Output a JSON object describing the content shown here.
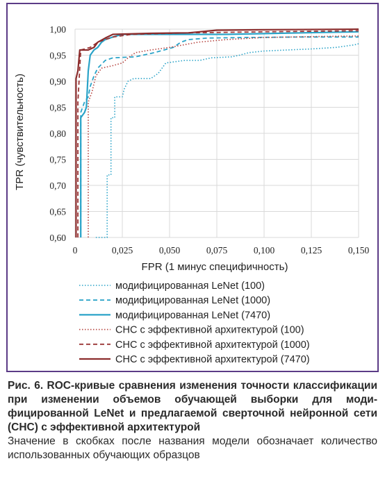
{
  "chart_data": {
    "type": "line",
    "xlabel": "FPR (1 минус специфичность)",
    "ylabel": "TPR (чувствительность)",
    "xlim": [
      0,
      0.15
    ],
    "ylim": [
      0.6,
      1.0
    ],
    "x_ticks": [
      "0",
      "0,025",
      "0,050",
      "0,075",
      "0,100",
      "0,125",
      "0,150"
    ],
    "y_ticks": [
      "0,60",
      "0,65",
      "0,70",
      "0,75",
      "0,80",
      "0,85",
      "0,90",
      "0,95",
      "1,00"
    ],
    "grid": true,
    "legend_position": "bottom",
    "series": [
      {
        "name": "модифицированная LeNet (100)",
        "color": "#2aa3c8",
        "dash": "dotted",
        "points": [
          [
            0.011,
            0.6
          ],
          [
            0.017,
            0.6
          ],
          [
            0.017,
            0.72
          ],
          [
            0.019,
            0.72
          ],
          [
            0.019,
            0.83
          ],
          [
            0.021,
            0.83
          ],
          [
            0.021,
            0.87
          ],
          [
            0.025,
            0.87
          ],
          [
            0.026,
            0.885
          ],
          [
            0.028,
            0.9
          ],
          [
            0.031,
            0.905
          ],
          [
            0.04,
            0.905
          ],
          [
            0.042,
            0.91
          ],
          [
            0.044,
            0.915
          ],
          [
            0.048,
            0.935
          ],
          [
            0.052,
            0.937
          ],
          [
            0.058,
            0.94
          ],
          [
            0.066,
            0.94
          ],
          [
            0.072,
            0.945
          ],
          [
            0.083,
            0.947
          ],
          [
            0.087,
            0.95
          ],
          [
            0.092,
            0.955
          ],
          [
            0.1,
            0.958
          ],
          [
            0.112,
            0.96
          ],
          [
            0.125,
            0.962
          ],
          [
            0.138,
            0.965
          ],
          [
            0.148,
            0.97
          ],
          [
            0.15,
            0.972
          ]
        ]
      },
      {
        "name": "модифицированная LeNet (1000)",
        "color": "#2aa3c8",
        "dash": "dashed",
        "points": [
          [
            0.003,
            0.6
          ],
          [
            0.003,
            0.84
          ],
          [
            0.005,
            0.86
          ],
          [
            0.007,
            0.87
          ],
          [
            0.008,
            0.89
          ],
          [
            0.01,
            0.91
          ],
          [
            0.012,
            0.925
          ],
          [
            0.016,
            0.94
          ],
          [
            0.02,
            0.945
          ],
          [
            0.032,
            0.947
          ],
          [
            0.042,
            0.955
          ],
          [
            0.052,
            0.965
          ],
          [
            0.056,
            0.975
          ],
          [
            0.06,
            0.98
          ],
          [
            0.07,
            0.983
          ],
          [
            0.09,
            0.984
          ],
          [
            0.12,
            0.985
          ],
          [
            0.15,
            0.985
          ]
        ]
      },
      {
        "name": "модифицированная LeNet (7470)",
        "color": "#2aa3c8",
        "dash": "solid",
        "points": [
          [
            0.003,
            0.6
          ],
          [
            0.003,
            0.83
          ],
          [
            0.005,
            0.84
          ],
          [
            0.006,
            0.85
          ],
          [
            0.007,
            0.92
          ],
          [
            0.008,
            0.95
          ],
          [
            0.01,
            0.96
          ],
          [
            0.012,
            0.965
          ],
          [
            0.014,
            0.975
          ],
          [
            0.016,
            0.98
          ],
          [
            0.02,
            0.985
          ],
          [
            0.025,
            0.99
          ],
          [
            0.05,
            0.99
          ],
          [
            0.08,
            0.99
          ],
          [
            0.12,
            0.993
          ],
          [
            0.15,
            0.995
          ]
        ]
      },
      {
        "name": "СНС с эффективной архитектурой (100)",
        "color": "#b5433f",
        "dash": "dotted",
        "points": [
          [
            0.007,
            0.6
          ],
          [
            0.007,
            0.86
          ],
          [
            0.009,
            0.88
          ],
          [
            0.011,
            0.91
          ],
          [
            0.014,
            0.925
          ],
          [
            0.02,
            0.93
          ],
          [
            0.025,
            0.935
          ],
          [
            0.028,
            0.945
          ],
          [
            0.032,
            0.955
          ],
          [
            0.04,
            0.96
          ],
          [
            0.05,
            0.965
          ],
          [
            0.065,
            0.975
          ],
          [
            0.08,
            0.98
          ],
          [
            0.1,
            0.984
          ],
          [
            0.13,
            0.986
          ],
          [
            0.15,
            0.987
          ]
        ]
      },
      {
        "name": "СНС с эффективной архитектурой (1000)",
        "color": "#9a3535",
        "dash": "dashed",
        "points": [
          [
            0.0015,
            0.6
          ],
          [
            0.0015,
            0.86
          ],
          [
            0.003,
            0.96
          ],
          [
            0.008,
            0.965
          ],
          [
            0.012,
            0.975
          ],
          [
            0.016,
            0.98
          ],
          [
            0.02,
            0.985
          ],
          [
            0.03,
            0.99
          ],
          [
            0.06,
            0.993
          ],
          [
            0.1,
            0.995
          ],
          [
            0.15,
            0.997
          ]
        ]
      },
      {
        "name": "СНС с эффективной архитектурой (7470)",
        "color": "#8b2c2c",
        "dash": "solid",
        "points": [
          [
            0.0005,
            0.6
          ],
          [
            0.0005,
            0.905
          ],
          [
            0.0015,
            0.92
          ],
          [
            0.0025,
            0.96
          ],
          [
            0.007,
            0.96
          ],
          [
            0.01,
            0.965
          ],
          [
            0.012,
            0.975
          ],
          [
            0.016,
            0.983
          ],
          [
            0.02,
            0.99
          ],
          [
            0.04,
            0.992
          ],
          [
            0.06,
            0.993
          ],
          [
            0.075,
            0.998
          ],
          [
            0.1,
            0.999
          ],
          [
            0.15,
            1.0
          ]
        ]
      }
    ]
  },
  "caption": {
    "title": "Рис. 6. ROC-кривые сравнения изменения точности классифи­кации при изменении объемов обучающей выборки для моди­фицированной LeNet и предлагаемой сверточной нейронной сети (СНС) с эффективной архитектурой",
    "note": "Значение в скобках после названия модели обозначает количе­ство использованных обучающих образцов"
  }
}
